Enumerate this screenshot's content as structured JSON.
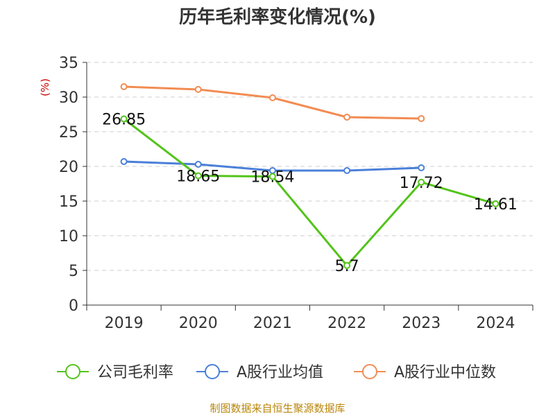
{
  "chart_data": {
    "type": "line",
    "title": "历年毛利率变化情况(%)",
    "unit": "(%)",
    "categories": [
      "2019",
      "2020",
      "2021",
      "2022",
      "2023",
      "2024"
    ],
    "ylim": [
      0,
      35
    ],
    "yticks": [
      0,
      5,
      10,
      15,
      20,
      25,
      30,
      35
    ],
    "yticklabels": [
      "0",
      "5",
      "10",
      "15",
      "20",
      "25",
      "30",
      "35"
    ],
    "grid": true,
    "legend_position": "bottom",
    "series": [
      {
        "name": "公司毛利率",
        "color": "#52c41a",
        "values": [
          26.85,
          18.65,
          18.54,
          5.7,
          17.72,
          14.61
        ],
        "labels": [
          "26.85",
          "18.65",
          "18.54",
          "5.7",
          "17.72",
          "14.61"
        ]
      },
      {
        "name": "A股行业均值",
        "color": "#4a7fd9",
        "values": [
          20.7,
          20.3,
          19.4,
          19.4,
          19.8,
          null
        ]
      },
      {
        "name": "A股行业中位数",
        "color": "#f28c52",
        "values": [
          31.5,
          31.1,
          29.9,
          27.1,
          26.9,
          null
        ]
      }
    ],
    "source": "制图数据来自恒生聚源数据库"
  }
}
